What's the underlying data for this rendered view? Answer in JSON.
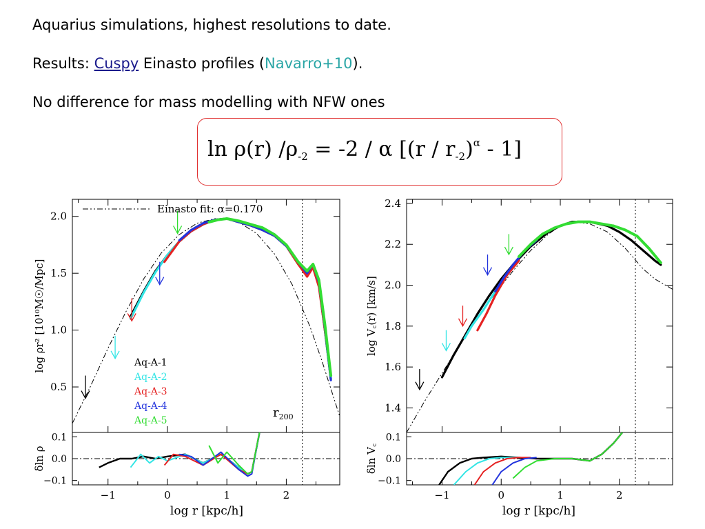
{
  "text": {
    "line1": "Aquarius simulations, highest resolutions to date.",
    "line2_prefix": "Results: ",
    "line2_link": "Cuspy",
    "line2_mid": " Einasto profiles  (",
    "line2_ref": "Navarro+10",
    "line2_suffix": ").",
    "line3": "No difference for mass modelling with NFW ones"
  },
  "formula": {
    "lhs": "ln  ρ(r) /ρ",
    "lhs_sub": "-2",
    "eq": "  =  -2 / α   [(r / r",
    "r_sub": "-2",
    "close": ")",
    "exp": "α",
    "tail": "  -  1]"
  },
  "chart_data": [
    {
      "type": "line",
      "xlabel": "log r [kpc/h]",
      "ylabel": "log ρr² [10¹⁰M☉/Mpc]",
      "xlim": [
        -1.6,
        2.9
      ],
      "ylim": [
        0.1,
        2.15
      ],
      "xticks": [
        -1,
        0,
        1,
        2
      ],
      "yticks": [
        0.5,
        1.0,
        1.5,
        2.0
      ],
      "ytick_labels": [
        "0.5",
        "1.0",
        "1.5",
        "2.0"
      ],
      "legend_title": "Einasto fit: α=0.170",
      "vline_label": "r",
      "vline_label_sub": "200",
      "vline_x": 2.27,
      "fit": {
        "name": "Einasto fit",
        "x": [
          -1.6,
          -1.3,
          -1.0,
          -0.7,
          -0.4,
          -0.1,
          0.2,
          0.5,
          0.8,
          1.0,
          1.2,
          1.5,
          1.8,
          2.1,
          2.4,
          2.6,
          2.9
        ],
        "y": [
          0.18,
          0.5,
          0.84,
          1.16,
          1.45,
          1.68,
          1.84,
          1.94,
          1.98,
          1.98,
          1.95,
          1.85,
          1.67,
          1.4,
          1.03,
          0.73,
          0.24
        ]
      },
      "series": [
        {
          "name": "Aq-A-1",
          "color": "#000000",
          "x": [
            -0.62,
            -0.4,
            -0.2,
            0.0,
            0.2,
            0.4,
            0.6,
            0.8,
            1.0,
            1.2,
            1.4,
            1.6,
            1.8,
            2.0,
            2.2,
            2.35,
            2.45,
            2.55,
            2.65,
            2.75
          ],
          "y": [
            1.12,
            1.34,
            1.52,
            1.66,
            1.78,
            1.87,
            1.93,
            1.97,
            1.98,
            1.95,
            1.92,
            1.88,
            1.83,
            1.74,
            1.6,
            1.5,
            1.55,
            1.4,
            1.0,
            0.57
          ]
        },
        {
          "name": "Aq-A-2",
          "color": "#33e5e5",
          "x": [
            -0.62,
            -0.4,
            -0.2,
            0.0,
            0.2,
            0.4,
            0.6,
            0.8,
            1.0,
            1.2,
            1.4,
            1.6,
            1.8,
            2.0,
            2.2,
            2.35,
            2.45,
            2.55,
            2.65,
            2.75
          ],
          "y": [
            1.1,
            1.33,
            1.51,
            1.66,
            1.78,
            1.87,
            1.93,
            1.97,
            1.98,
            1.95,
            1.92,
            1.88,
            1.83,
            1.74,
            1.58,
            1.5,
            1.55,
            1.4,
            1.0,
            0.58
          ]
        },
        {
          "name": "Aq-A-3",
          "color": "#e52222",
          "x": [
            -0.05,
            0.2,
            0.4,
            0.6,
            0.8,
            1.0,
            1.2,
            1.4,
            1.6,
            1.8,
            2.0,
            2.2,
            2.35,
            2.45,
            2.55,
            2.65,
            2.75
          ],
          "y": [
            1.6,
            1.78,
            1.87,
            1.93,
            1.97,
            1.98,
            1.95,
            1.92,
            1.88,
            1.83,
            1.74,
            1.58,
            1.47,
            1.55,
            1.38,
            1.0,
            0.6
          ]
        },
        {
          "name": "Aq-A-4",
          "color": "#2233dd",
          "x": [
            0.2,
            0.4,
            0.6,
            0.8,
            1.0,
            1.2,
            1.4,
            1.6,
            1.8,
            2.0,
            2.2,
            2.35,
            2.45,
            2.55,
            2.65,
            2.75
          ],
          "y": [
            1.79,
            1.88,
            1.94,
            1.97,
            1.98,
            1.95,
            1.92,
            1.88,
            1.83,
            1.74,
            1.6,
            1.5,
            1.58,
            1.42,
            1.02,
            0.56
          ]
        },
        {
          "name": "Aq-A-5",
          "color": "#33dd33",
          "x": [
            0.7,
            0.85,
            1.0,
            1.2,
            1.4,
            1.6,
            1.8,
            2.0,
            2.2,
            2.35,
            2.45,
            2.55,
            2.65,
            2.75
          ],
          "y": [
            1.95,
            1.97,
            1.98,
            1.96,
            1.93,
            1.9,
            1.84,
            1.75,
            1.6,
            1.52,
            1.58,
            1.44,
            1.05,
            0.6
          ]
        }
      ],
      "arrows": [
        {
          "x": -1.38,
          "color": "#000000",
          "y_from": 0.6,
          "y_to": 0.4
        },
        {
          "x": -0.88,
          "color": "#33e5e5",
          "y_from": 0.95,
          "y_to": 0.75
        },
        {
          "x": -0.6,
          "color": "#e52222",
          "y_from": 1.28,
          "y_to": 1.08
        },
        {
          "x": -0.13,
          "color": "#2233dd",
          "y_from": 1.6,
          "y_to": 1.4
        },
        {
          "x": 0.17,
          "color": "#33dd33",
          "y_from": 2.05,
          "y_to": 1.85
        }
      ],
      "residual": {
        "ylabel": "δln ρ",
        "ylim": [
          -0.12,
          0.12
        ],
        "yticks": [
          -0.1,
          0.0,
          0.1
        ],
        "ytick_labels": [
          "−0.1",
          "0.0",
          "0.1"
        ],
        "xtick_labels": [
          "−1",
          "0",
          "1",
          "2"
        ],
        "series": [
          {
            "color": "#000000",
            "x": [
              -1.15,
              -1.0,
              -0.8,
              -0.6,
              -0.4,
              -0.2,
              0.0,
              0.3,
              0.6,
              0.9,
              1.2,
              1.35,
              1.42,
              1.55
            ],
            "y": [
              -0.04,
              -0.02,
              0.0,
              0.0,
              0.01,
              0.0,
              0.01,
              0.02,
              -0.02,
              0.02,
              -0.04,
              -0.07,
              -0.06,
              0.12
            ]
          },
          {
            "color": "#33e5e5",
            "x": [
              -0.62,
              -0.45,
              -0.3,
              -0.15,
              0.0,
              0.3,
              0.6,
              0.9,
              1.2,
              1.35,
              1.42,
              1.55
            ],
            "y": [
              -0.04,
              0.02,
              -0.02,
              0.01,
              -0.01,
              0.02,
              -0.02,
              0.02,
              -0.04,
              -0.07,
              -0.06,
              0.12
            ]
          },
          {
            "color": "#e52222",
            "x": [
              -0.05,
              0.1,
              0.3,
              0.6,
              0.9,
              1.2,
              1.35,
              1.42,
              1.55
            ],
            "y": [
              -0.03,
              0.02,
              0.01,
              -0.03,
              0.02,
              -0.05,
              -0.07,
              -0.06,
              0.12
            ]
          },
          {
            "color": "#2233dd",
            "x": [
              0.2,
              0.4,
              0.6,
              0.9,
              1.2,
              1.35,
              1.42,
              1.55
            ],
            "y": [
              0.02,
              0.01,
              -0.03,
              0.03,
              -0.05,
              -0.08,
              -0.07,
              0.12
            ]
          },
          {
            "color": "#33dd33",
            "x": [
              0.7,
              0.85,
              1.0,
              1.2,
              1.35,
              1.42,
              1.55
            ],
            "y": [
              0.06,
              -0.02,
              0.03,
              -0.03,
              -0.07,
              -0.06,
              0.12
            ]
          }
        ]
      }
    },
    {
      "type": "line",
      "xlabel": "log r [kpc/h]",
      "ylabel": "log V꜀(r) [km/s]",
      "xlim": [
        -1.6,
        2.9
      ],
      "ylim": [
        1.28,
        2.42
      ],
      "xticks": [
        -1,
        0,
        1,
        2
      ],
      "yticks": [
        1.4,
        1.6,
        1.8,
        2.0,
        2.2,
        2.4
      ],
      "ytick_labels": [
        "1.4",
        "1.6",
        "1.8",
        "2.0",
        "2.2",
        "2.4"
      ],
      "vline_x": 2.27,
      "fit": {
        "name": "Einasto fit",
        "x": [
          -1.6,
          -1.3,
          -1.0,
          -0.7,
          -0.4,
          -0.1,
          0.2,
          0.5,
          0.8,
          1.0,
          1.2,
          1.5,
          1.8,
          2.1,
          2.4,
          2.6,
          2.9
        ],
        "y": [
          1.28,
          1.43,
          1.57,
          1.71,
          1.84,
          1.96,
          2.07,
          2.17,
          2.25,
          2.29,
          2.31,
          2.3,
          2.26,
          2.18,
          2.08,
          2.03,
          1.98
        ]
      },
      "series": [
        {
          "name": "Aq-A-1",
          "color": "#000000",
          "x": [
            -1.0,
            -0.8,
            -0.6,
            -0.4,
            -0.2,
            0.0,
            0.2,
            0.5,
            0.8,
            1.0,
            1.2,
            1.5,
            1.8,
            2.0,
            2.2,
            2.4,
            2.6,
            2.7
          ],
          "y": [
            1.55,
            1.66,
            1.76,
            1.86,
            1.95,
            2.03,
            2.1,
            2.19,
            2.26,
            2.29,
            2.31,
            2.31,
            2.29,
            2.26,
            2.22,
            2.17,
            2.12,
            2.1
          ]
        },
        {
          "name": "Aq-A-2",
          "color": "#33e5e5",
          "x": [
            -0.62,
            -0.5,
            -0.3,
            -0.1,
            0.1
          ],
          "y": [
            1.74,
            1.8,
            1.88,
            1.97,
            2.05
          ]
        },
        {
          "name": "Aq-A-3",
          "color": "#e52222",
          "x": [
            -0.4,
            -0.25,
            -0.1,
            0.1,
            0.3
          ],
          "y": [
            1.78,
            1.86,
            1.95,
            2.05,
            2.12
          ]
        },
        {
          "name": "Aq-A-4",
          "color": "#2233dd",
          "x": [
            -0.1,
            0.05,
            0.2,
            0.4,
            0.6
          ],
          "y": [
            1.97,
            2.04,
            2.1,
            2.17,
            2.22
          ]
        },
        {
          "name": "Aq-A-5",
          "color": "#33dd33",
          "x": [
            0.3,
            0.5,
            0.7,
            0.9,
            1.1,
            1.3,
            1.5,
            1.7,
            1.9,
            2.1,
            2.3,
            2.5,
            2.7
          ],
          "y": [
            2.14,
            2.2,
            2.25,
            2.28,
            2.3,
            2.31,
            2.31,
            2.3,
            2.29,
            2.27,
            2.24,
            2.18,
            2.11
          ]
        }
      ],
      "arrows": [
        {
          "x": -1.38,
          "color": "#000000",
          "y_from": 1.59,
          "y_to": 1.49
        },
        {
          "x": -0.93,
          "color": "#33e5e5",
          "y_from": 1.78,
          "y_to": 1.68
        },
        {
          "x": -0.65,
          "color": "#e52222",
          "y_from": 1.9,
          "y_to": 1.8
        },
        {
          "x": -0.23,
          "color": "#2233dd",
          "y_from": 2.15,
          "y_to": 2.05
        },
        {
          "x": 0.13,
          "color": "#33dd33",
          "y_from": 2.25,
          "y_to": 2.15
        }
      ],
      "residual": {
        "ylabel": "δln V꜀",
        "ylim": [
          -0.12,
          0.12
        ],
        "yticks": [
          -0.1,
          0.0,
          0.1
        ],
        "ytick_labels": [
          "−0.1",
          "0.0",
          "0.1"
        ],
        "xtick_labels": [
          "−1",
          "0",
          "1",
          "2"
        ],
        "series": [
          {
            "color": "#000000",
            "x": [
              -1.05,
              -0.9,
              -0.7,
              -0.5,
              -0.3,
              0.0,
              0.3,
              0.6,
              0.9,
              1.2,
              1.5,
              1.7,
              1.9,
              2.05
            ],
            "y": [
              -0.12,
              -0.06,
              -0.02,
              0.0,
              0.005,
              0.01,
              0.005,
              0.0,
              0.0,
              0.0,
              -0.01,
              0.02,
              0.07,
              0.12
            ]
          },
          {
            "color": "#33e5e5",
            "x": [
              -0.8,
              -0.6,
              -0.4,
              -0.2,
              0.0,
              0.3
            ],
            "y": [
              -0.12,
              -0.06,
              -0.02,
              0.0,
              0.005,
              0.005
            ]
          },
          {
            "color": "#e52222",
            "x": [
              -0.45,
              -0.3,
              -0.1,
              0.1,
              0.3,
              0.5
            ],
            "y": [
              -0.12,
              -0.06,
              -0.02,
              0.0,
              0.005,
              0.005
            ]
          },
          {
            "color": "#2233dd",
            "x": [
              -0.15,
              0.0,
              0.2,
              0.4,
              0.6
            ],
            "y": [
              -0.12,
              -0.06,
              -0.02,
              0.0,
              0.005
            ]
          },
          {
            "color": "#33dd33",
            "x": [
              0.2,
              0.4,
              0.6,
              0.9,
              1.2,
              1.5,
              1.7,
              1.9,
              2.05
            ],
            "y": [
              -0.09,
              -0.04,
              -0.01,
              0.0,
              0.0,
              -0.01,
              0.02,
              0.07,
              0.12
            ]
          }
        ]
      }
    }
  ]
}
